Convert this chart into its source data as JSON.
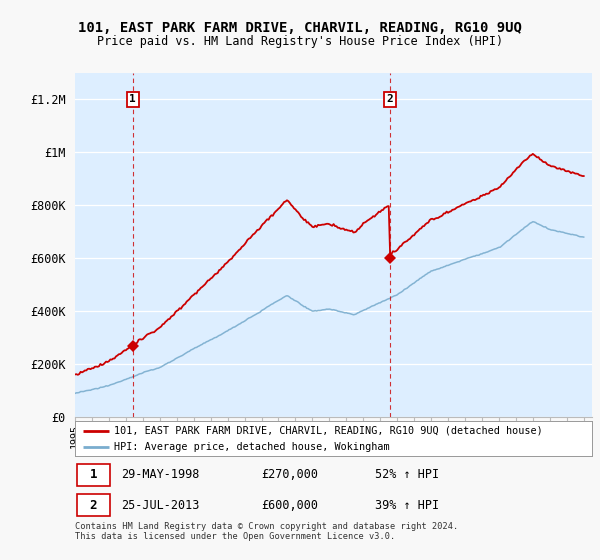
{
  "title": "101, EAST PARK FARM DRIVE, CHARVIL, READING, RG10 9UQ",
  "subtitle": "Price paid vs. HM Land Registry's House Price Index (HPI)",
  "ylabel_ticks": [
    "£0",
    "£200K",
    "£400K",
    "£600K",
    "£800K",
    "£1M",
    "£1.2M"
  ],
  "ytick_values": [
    0,
    200000,
    400000,
    600000,
    800000,
    1000000,
    1200000
  ],
  "ylim": [
    0,
    1300000
  ],
  "xlim_start": 1995.0,
  "xlim_end": 2025.5,
  "sale1_x": 1998.41,
  "sale1_y": 270000,
  "sale2_x": 2013.56,
  "sale2_y": 600000,
  "legend_line1": "101, EAST PARK FARM DRIVE, CHARVIL, READING, RG10 9UQ (detached house)",
  "legend_line2": "HPI: Average price, detached house, Wokingham",
  "table_row1": [
    "1",
    "29-MAY-1998",
    "£270,000",
    "52% ↑ HPI"
  ],
  "table_row2": [
    "2",
    "25-JUL-2013",
    "£600,000",
    "39% ↑ HPI"
  ],
  "footer": "Contains HM Land Registry data © Crown copyright and database right 2024.\nThis data is licensed under the Open Government Licence v3.0.",
  "red_color": "#cc0000",
  "blue_color": "#7aadce",
  "plot_bg_color": "#ddeeff",
  "vline_color": "#cc0000",
  "grid_color": "#ffffff",
  "background_color": "#f8f8f8"
}
